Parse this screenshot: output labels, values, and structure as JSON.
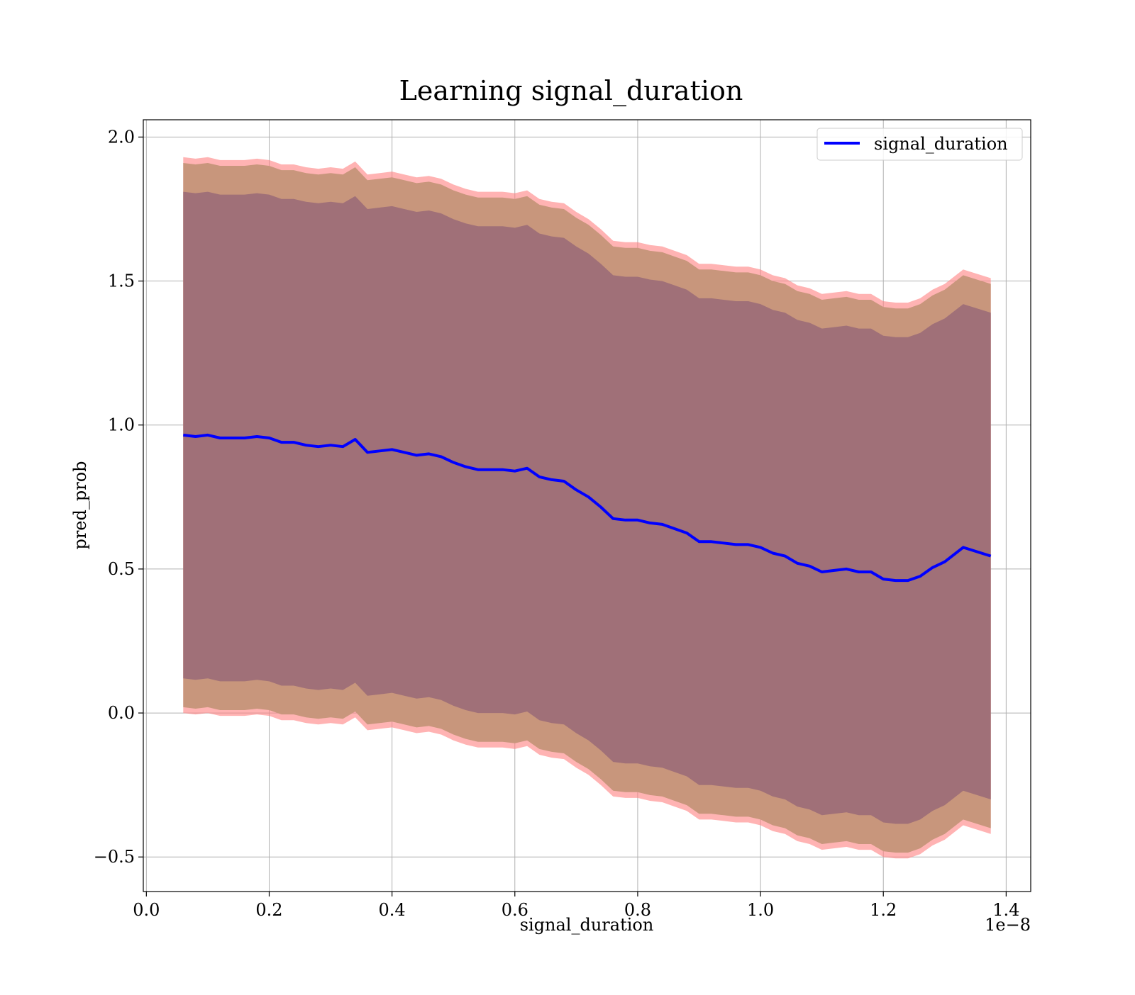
{
  "chart_data": {
    "type": "line",
    "title": "Learning signal_duration",
    "xlabel": "signal_duration",
    "ylabel": "pred_prob",
    "x_offset_label": "1e−8",
    "xlim": [
      -0.005,
      1.44
    ],
    "ylim": [
      -0.62,
      2.06
    ],
    "x_ticks": [
      0.0,
      0.2,
      0.4,
      0.6,
      0.8,
      1.0,
      1.2,
      1.4
    ],
    "x_tick_labels": [
      "0.0",
      "0.2",
      "0.4",
      "0.6",
      "0.8",
      "1.0",
      "1.2",
      "1.4"
    ],
    "y_ticks": [
      -0.5,
      0.0,
      0.5,
      1.0,
      1.5,
      2.0
    ],
    "y_tick_labels": [
      "−0.5",
      "0.0",
      "0.5",
      "1.0",
      "1.5",
      "2.0"
    ],
    "grid": true,
    "legend_position": "top-right",
    "colors": {
      "line": "#0000ff",
      "outer_band": "#ff8080",
      "middle_band": "#c8967c",
      "inner_band": "#a07078",
      "grid": "#b0b0b0"
    },
    "x": [
      0.06,
      0.08,
      0.1,
      0.12,
      0.14,
      0.16,
      0.18,
      0.2,
      0.22,
      0.24,
      0.26,
      0.28,
      0.3,
      0.32,
      0.34,
      0.36,
      0.38,
      0.4,
      0.42,
      0.44,
      0.46,
      0.48,
      0.5,
      0.52,
      0.54,
      0.56,
      0.58,
      0.6,
      0.62,
      0.64,
      0.66,
      0.68,
      0.7,
      0.72,
      0.74,
      0.76,
      0.78,
      0.8,
      0.82,
      0.84,
      0.86,
      0.88,
      0.9,
      0.92,
      0.94,
      0.96,
      0.98,
      1.0,
      1.02,
      1.04,
      1.06,
      1.08,
      1.1,
      1.12,
      1.14,
      1.16,
      1.18,
      1.2,
      1.22,
      1.24,
      1.26,
      1.28,
      1.3,
      1.33,
      1.375
    ],
    "series": [
      {
        "name": "signal_duration",
        "values": [
          0.965,
          0.96,
          0.965,
          0.955,
          0.955,
          0.955,
          0.96,
          0.955,
          0.94,
          0.94,
          0.93,
          0.925,
          0.93,
          0.925,
          0.95,
          0.905,
          0.91,
          0.915,
          0.905,
          0.895,
          0.9,
          0.89,
          0.87,
          0.855,
          0.845,
          0.845,
          0.845,
          0.84,
          0.85,
          0.82,
          0.81,
          0.805,
          0.775,
          0.75,
          0.715,
          0.675,
          0.67,
          0.67,
          0.66,
          0.655,
          0.64,
          0.625,
          0.595,
          0.595,
          0.59,
          0.585,
          0.585,
          0.575,
          0.555,
          0.545,
          0.52,
          0.51,
          0.49,
          0.495,
          0.5,
          0.49,
          0.49,
          0.465,
          0.46,
          0.46,
          0.475,
          0.505,
          0.525,
          0.575,
          0.545
        ]
      }
    ]
  }
}
